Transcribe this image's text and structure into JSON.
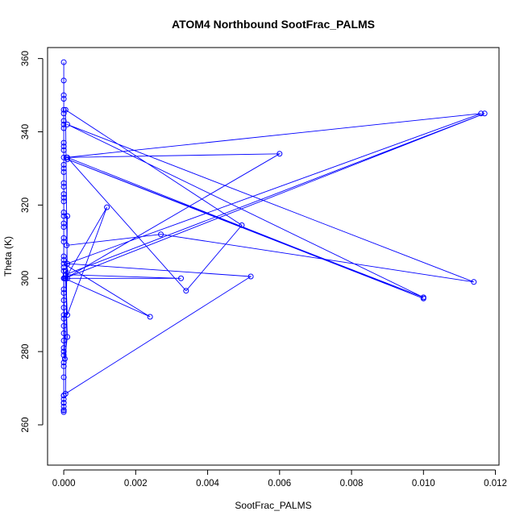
{
  "chart_data": {
    "type": "scatter",
    "title": "ATOM4 Northbound SootFrac_PALMS",
    "xlabel": "SootFrac_PALMS",
    "ylabel": "Theta (K)",
    "xlim": [
      -0.00045,
      0.0121
    ],
    "ylim": [
      249,
      363
    ],
    "x_ticks": [
      0.0,
      0.002,
      0.004,
      0.006,
      0.008,
      0.01,
      0.012
    ],
    "x_tick_labels": [
      "0.000",
      "0.002",
      "0.004",
      "0.006",
      "0.008",
      "0.010",
      "0.012"
    ],
    "y_ticks": [
      260,
      280,
      300,
      320,
      340,
      360
    ],
    "y_tick_labels": [
      "260",
      "280",
      "300",
      "320",
      "340",
      "360"
    ],
    "grid": false,
    "legend": "none",
    "style": {
      "color": "#0000ff",
      "marker": "open-circle",
      "connected": true
    },
    "series": [
      {
        "x": [
          0,
          0,
          0,
          0,
          0,
          0,
          0,
          0,
          0,
          0,
          0,
          0,
          0,
          0,
          0,
          0,
          0,
          0,
          0,
          0,
          0,
          0,
          0,
          0,
          0,
          0,
          0,
          0,
          0,
          0,
          0.0024,
          2e-05,
          0.0117,
          5e-05,
          0.00326,
          5e-05,
          0.006,
          8e-05,
          0.0116,
          0.0001,
          0.0052,
          5e-05,
          0.0001,
          8e-05,
          0.0027,
          0.0114,
          0.0001,
          0.01,
          0.0001,
          0.01,
          0.0001,
          0.0034,
          0.00495,
          5e-05,
          0.0001,
          5e-05,
          0.0001,
          0.0012,
          5e-05,
          0.0001,
          3e-05,
          0,
          0,
          0,
          0,
          0,
          0,
          0,
          0,
          0,
          0,
          0,
          0,
          0,
          0,
          0,
          0,
          0,
          0,
          0,
          0,
          0,
          0,
          0,
          0,
          0,
          0,
          0,
          0
        ],
        "y": [
          359,
          354,
          350,
          349,
          346,
          345,
          343,
          342,
          341,
          337,
          336,
          335,
          333,
          331,
          330,
          329,
          326,
          325,
          323,
          322,
          321,
          318,
          317,
          315,
          314,
          311,
          310,
          306,
          305,
          304,
          289.5,
          300,
          345,
          301,
          300,
          300,
          334,
          333,
          345,
          304,
          300.5,
          268.5,
          317,
          309,
          312,
          299,
          342,
          294.8,
          332.5,
          294.5,
          333,
          296.6,
          314.5,
          346,
          300,
          302,
          290,
          319.4,
          300,
          284,
          278,
          303,
          302,
          300,
          297,
          296,
          294,
          292,
          290,
          289,
          287,
          285,
          283,
          281,
          280,
          279,
          277,
          276,
          273,
          268,
          267,
          266,
          264,
          264,
          263.5,
          264,
          265,
          266,
          268
        ]
      }
    ]
  }
}
